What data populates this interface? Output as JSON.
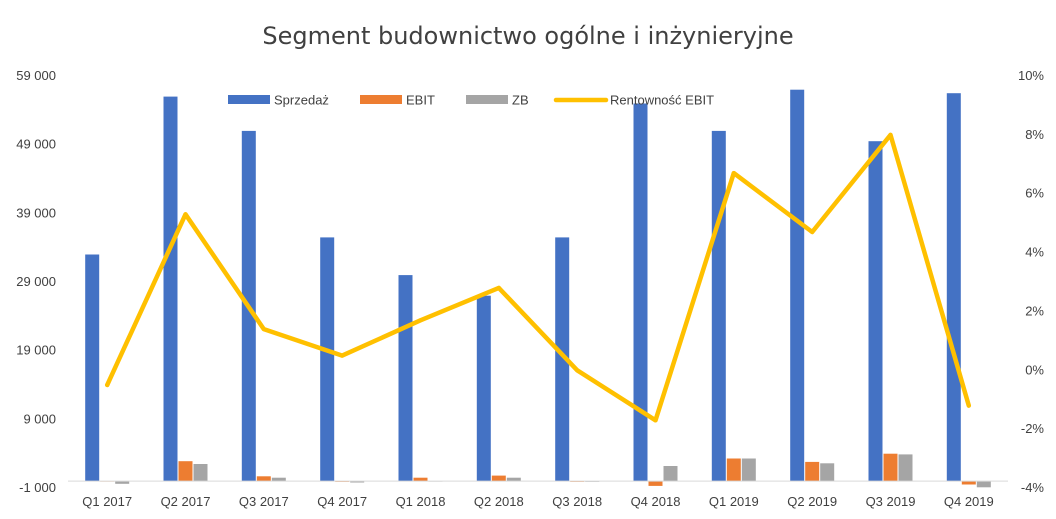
{
  "chart_data": {
    "type": "bar",
    "title": "Segment  budownictwo ogólne i inżynieryjne",
    "categories": [
      "Q1 2017",
      "Q2 2017",
      "Q3 2017",
      "Q4 2017",
      "Q1 2018",
      "Q2 2018",
      "Q3 2018",
      "Q4 2018",
      "Q1 2019",
      "Q2 2019",
      "Q3 2019",
      "Q4 2019"
    ],
    "y_left": {
      "ylim": [
        -1000,
        59000
      ],
      "ticks": [
        -1000,
        9000,
        19000,
        29000,
        39000,
        49000,
        59000
      ],
      "tick_labels": [
        "-1 000",
        "9 000",
        "19 000",
        "29 000",
        "39 000",
        "49 000",
        "59 000"
      ]
    },
    "y_right": {
      "ylim": [
        -4,
        10
      ],
      "ticks": [
        -4,
        -2,
        0,
        2,
        4,
        6,
        8,
        10
      ],
      "tick_labels": [
        "-4%",
        "-2%",
        "0%",
        "2%",
        "4%",
        "6%",
        "8%",
        "10%"
      ]
    },
    "grid": false,
    "legend_position": "top",
    "series": [
      {
        "name": "Sprzedaż",
        "type": "bar",
        "axis": "left",
        "color": "#4472C4",
        "values": [
          33000,
          56000,
          51000,
          35500,
          30000,
          27000,
          35500,
          55000,
          51000,
          57000,
          49500,
          56500
        ]
      },
      {
        "name": "EBIT",
        "type": "bar",
        "axis": "left",
        "color": "#ED7D31",
        "values": [
          0,
          2900,
          700,
          -100,
          500,
          800,
          -100,
          -700,
          3300,
          2800,
          4000,
          -500
        ]
      },
      {
        "name": "ZB",
        "type": "bar",
        "axis": "left",
        "color": "#A5A5A5",
        "values": [
          -400,
          2500,
          500,
          -200,
          0,
          500,
          -100,
          2200,
          3300,
          2600,
          3900,
          -900
        ]
      },
      {
        "name": "Rentowność EBIT",
        "type": "line",
        "axis": "right",
        "color": "#FFC000",
        "values": [
          -0.5,
          5.3,
          1.4,
          0.5,
          1.7,
          2.8,
          0.0,
          -1.7,
          6.7,
          4.7,
          8.0,
          -1.2
        ]
      }
    ]
  }
}
